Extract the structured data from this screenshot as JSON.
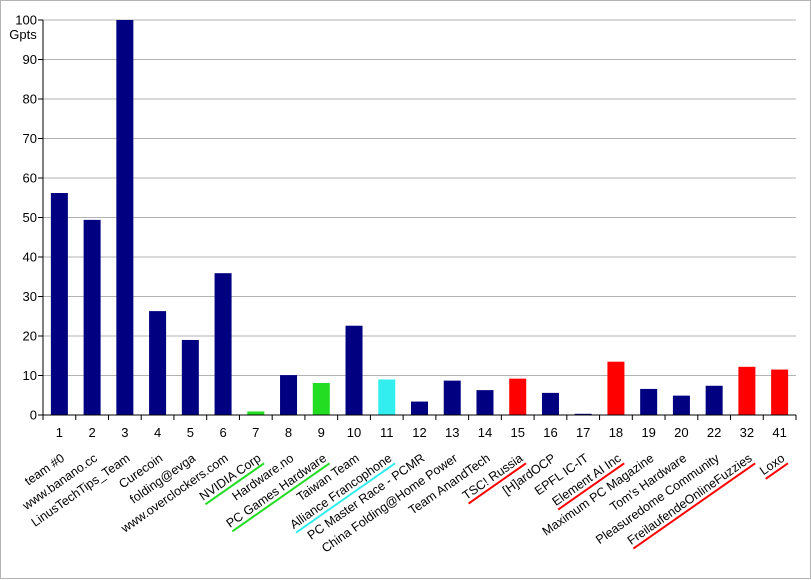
{
  "chart_data": {
    "type": "bar",
    "title": "",
    "xlabel": "",
    "ylabel": "Gpts",
    "ylim": [
      0,
      100
    ],
    "yticks": [
      0,
      10,
      20,
      30,
      40,
      50,
      60,
      70,
      80,
      90,
      100
    ],
    "grid": true,
    "legend": "none",
    "colors": {
      "navy": "#000080",
      "green": "#22dd22",
      "cyan": "#33eeee",
      "red": "#ff0000",
      "grid": "#b3b3b3",
      "axis": "#000000"
    },
    "categories": [
      "1",
      "2",
      "3",
      "4",
      "5",
      "6",
      "7",
      "8",
      "9",
      "10",
      "11",
      "12",
      "13",
      "14",
      "15",
      "16",
      "17",
      "18",
      "19",
      "20",
      "22",
      "32",
      "41"
    ],
    "team_names": [
      "team #0",
      "www.banano.cc",
      "LinusTechTips_Team",
      "Curecoin",
      "folding@evga",
      "www.overclockers.com",
      "NVIDIA Corp",
      "Hardware.no",
      "PC Games Hardware",
      "Taiwan Team",
      "Alliance Francophone",
      "PC Master Race - PCMR",
      "China Folding@Home Power",
      "Team AnandTech",
      "TSC! Russia",
      "[H]ardOCP",
      "EPFL IC-IT",
      "Element AI Inc",
      "Maximum PC Magazine",
      "Tom's Hardware",
      "Pleasuredome Community",
      "FreilaufendeOnlineFuzzies",
      "Loxo"
    ],
    "values": [
      56.2,
      49.4,
      100,
      26.3,
      19.0,
      35.9,
      0.9,
      10.1,
      8.1,
      22.6,
      9.0,
      3.4,
      8.7,
      6.3,
      9.2,
      5.6,
      0.3,
      13.5,
      6.6,
      4.9,
      7.4,
      12.2,
      11.5
    ],
    "bar_colors": [
      "navy",
      "navy",
      "navy",
      "navy",
      "navy",
      "navy",
      "green",
      "navy",
      "green",
      "navy",
      "cyan",
      "navy",
      "navy",
      "navy",
      "red",
      "navy",
      "navy",
      "red",
      "navy",
      "navy",
      "navy",
      "red",
      "red"
    ],
    "underline_colors": [
      "",
      "",
      "",
      "",
      "",
      "",
      "green",
      "",
      "green",
      "",
      "cyan",
      "",
      "",
      "",
      "red",
      "",
      "",
      "red",
      "",
      "",
      "",
      "red",
      "red"
    ]
  }
}
